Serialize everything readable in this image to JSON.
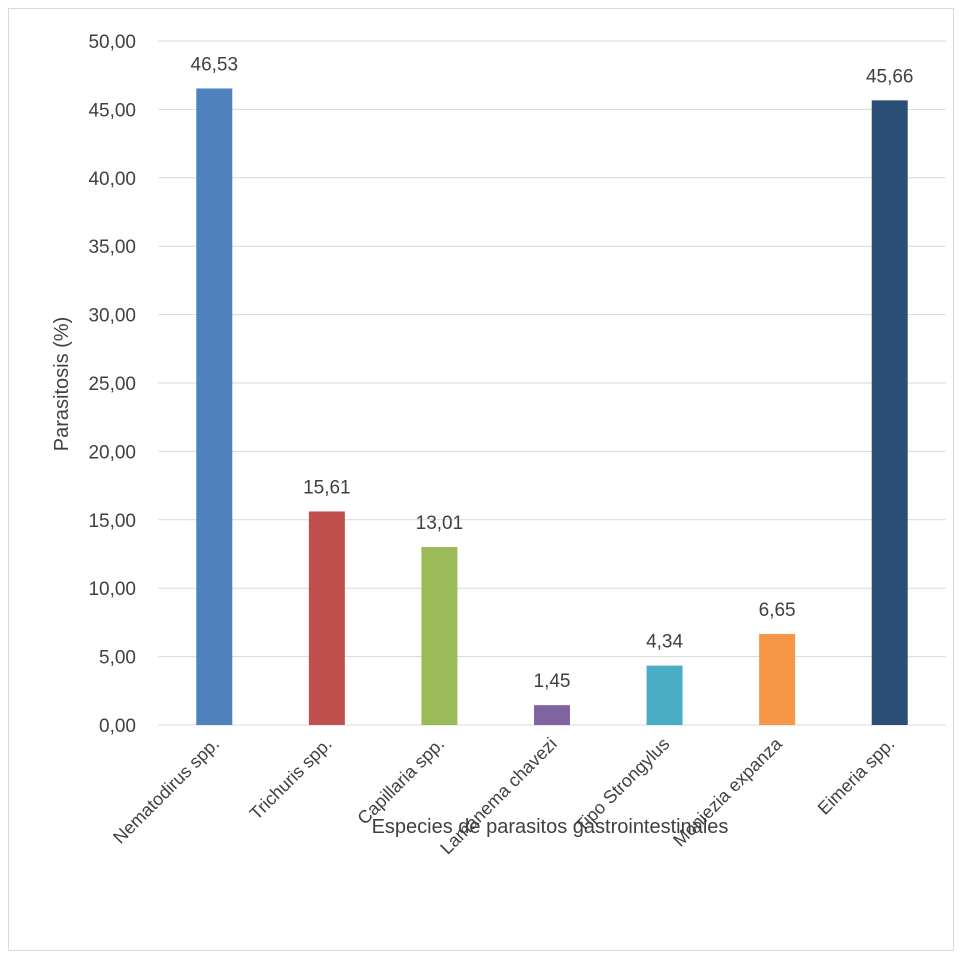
{
  "chart_data": {
    "type": "bar",
    "categories": [
      "Nematodirus spp.",
      "Trichuris spp.",
      "Capillaria spp.",
      "Lamanema chavezi",
      "Tipo Strongylus",
      "Moniezia expanza",
      "Eimeria spp."
    ],
    "values": [
      46.53,
      15.61,
      13.01,
      1.45,
      4.34,
      6.65,
      45.66
    ],
    "value_labels": [
      "46,53",
      "15,61",
      "13,01",
      "1,45",
      "4,34",
      "6,65",
      "45,66"
    ],
    "colors": [
      "#4f81bd",
      "#c0504d",
      "#9bbb59",
      "#8064a2",
      "#4bacc6",
      "#f79646",
      "#2c4d75"
    ],
    "xlabel": "Especies de parasitos gastrointestinales",
    "ylabel": "Parasitosis (%)",
    "ylim": [
      0,
      50
    ],
    "yticks": [
      0,
      5,
      10,
      15,
      20,
      25,
      30,
      35,
      40,
      45,
      50
    ],
    "ytick_labels": [
      "0,00",
      "5,00",
      "10,00",
      "15,00",
      "20,00",
      "25,00",
      "30,00",
      "35,00",
      "40,00",
      "45,00",
      "50,00"
    ],
    "grid": true,
    "gridline_color": "#d9d9d9",
    "legend": "none"
  }
}
